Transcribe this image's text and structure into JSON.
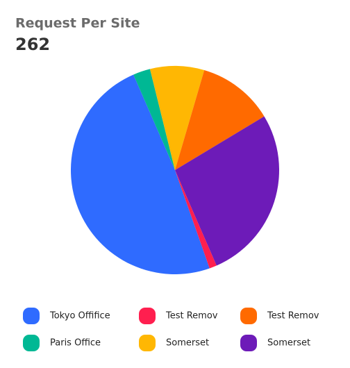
{
  "chart_data": {
    "type": "pie",
    "title": "Request Per Site",
    "total": 262,
    "categories": [
      "Tokyo Offifice",
      "Test Remov",
      "Test Remov",
      "Paris Office",
      "Somerset",
      "Somerset"
    ],
    "values": [
      128,
      3,
      31,
      7,
      22,
      71
    ],
    "colors": [
      "#2f6bff",
      "#ff1f4f",
      "#ff6a00",
      "#00b894",
      "#ffb703",
      "#6d1bb8"
    ]
  }
}
